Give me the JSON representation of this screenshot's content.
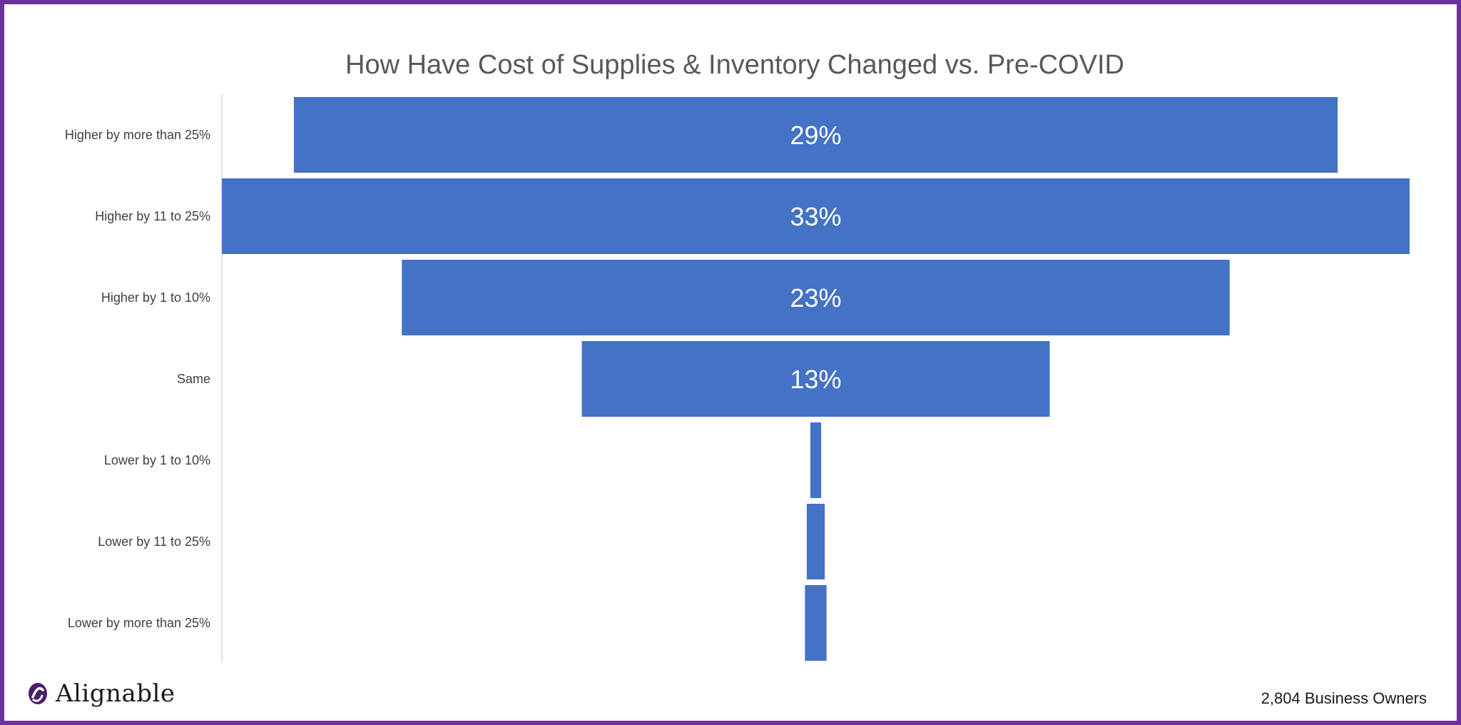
{
  "chart_data": {
    "type": "bar",
    "subtype": "funnel",
    "title": "How Have Cost of Supplies & Inventory Changed vs. Pre-COVID",
    "categories": [
      "Higher by more than 25%",
      "Higher by 11 to 25%",
      "Higher by 1 to 10%",
      "Same",
      "Lower by 1 to 10%",
      "Lower by 11 to 25%",
      "Lower by more than 25%"
    ],
    "values": [
      29,
      33,
      23,
      13,
      0.3,
      0.5,
      0.6
    ],
    "data_labels": [
      "29%",
      "33%",
      "23%",
      "13%",
      "",
      "",
      ""
    ],
    "bar_color": "#4472c4",
    "legend": "none",
    "grid": false
  },
  "branding": {
    "logo_text": "Alignable",
    "logo_color": "#4b1e6d"
  },
  "footer": {
    "note": "2,804 Business Owners"
  },
  "frame_color": "#7030a0"
}
